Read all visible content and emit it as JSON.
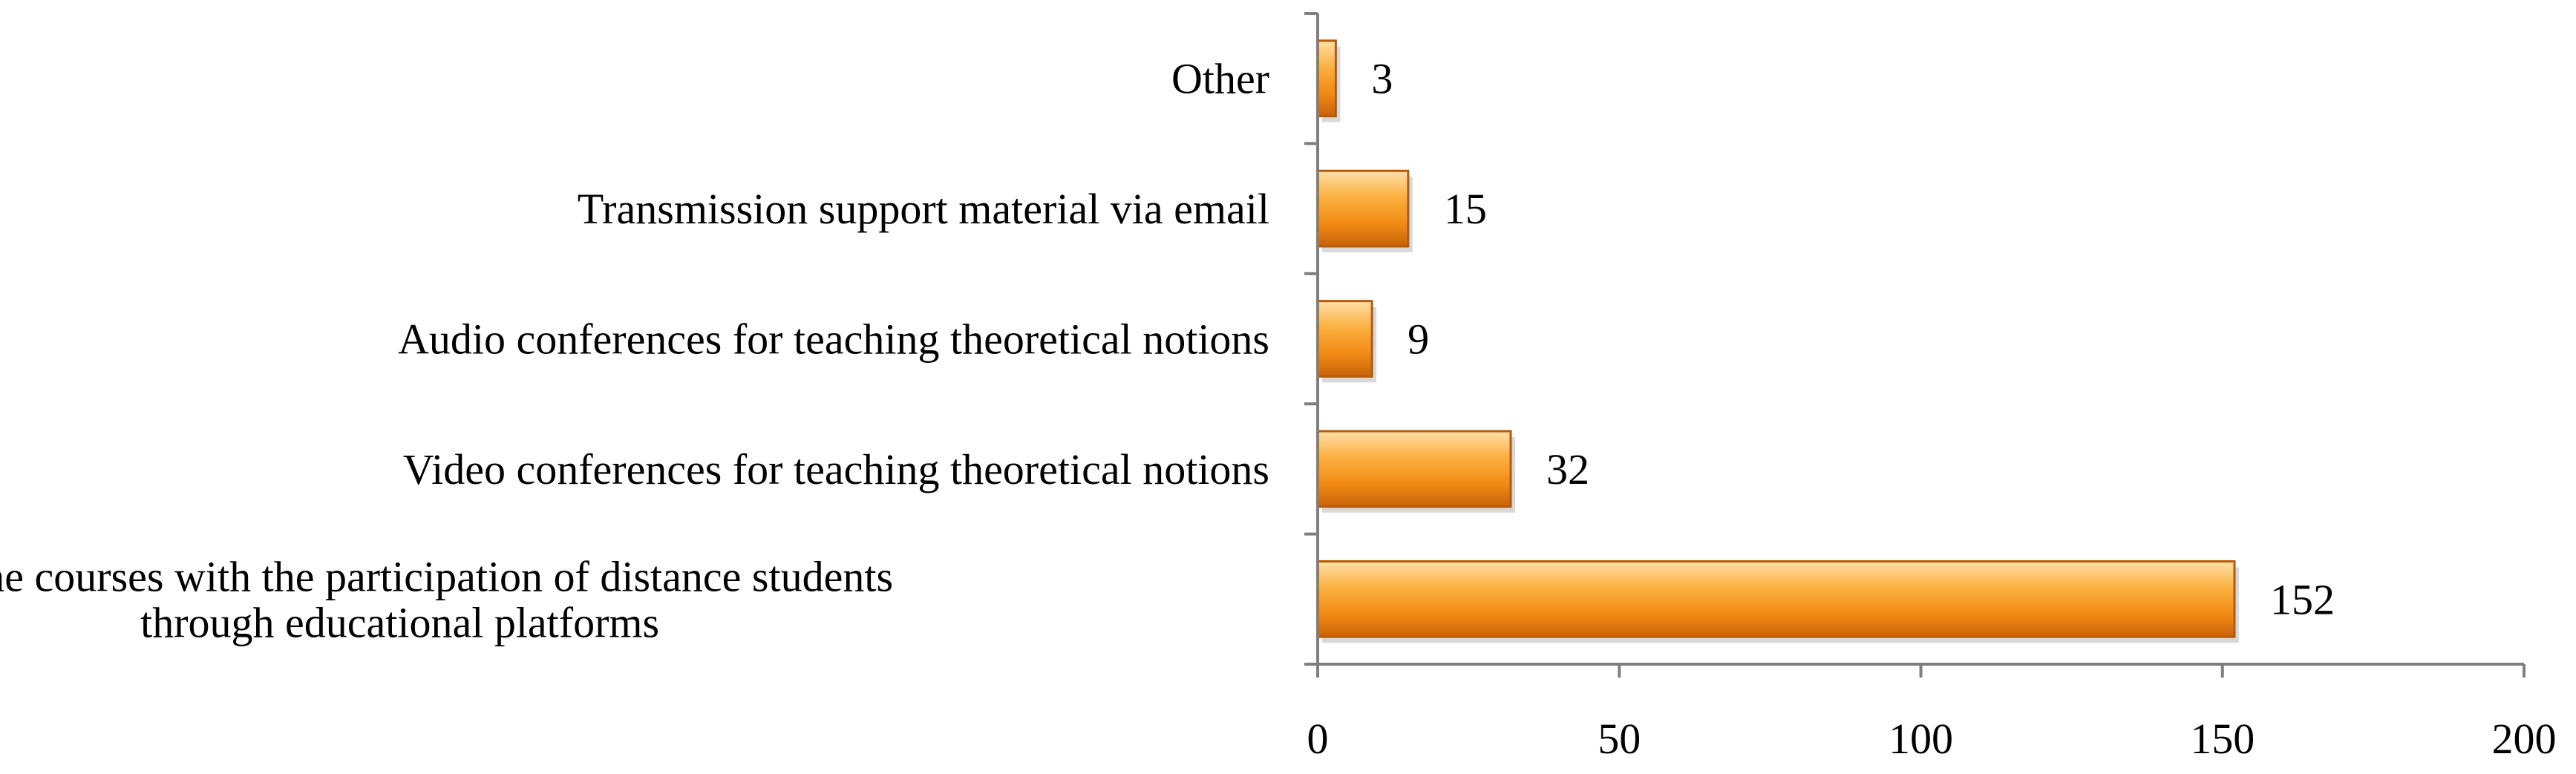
{
  "chart_data": {
    "type": "bar",
    "orientation": "horizontal",
    "categories": [
      [
        "Online courses with the participation of distance students",
        "through educational platforms"
      ],
      [
        "Video conferences for teaching theoretical notions"
      ],
      [
        "Audio conferences for teaching theoretical notions"
      ],
      [
        "Transmission support material via email"
      ],
      [
        "Other"
      ]
    ],
    "values": [
      152,
      32,
      9,
      15,
      3
    ],
    "data_labels": [
      "152",
      "32",
      "9",
      "15",
      "3"
    ],
    "xlim": [
      0,
      200
    ],
    "xticks": [
      0,
      50,
      100,
      150,
      200
    ],
    "xtick_labels": [
      "0",
      "50",
      "100",
      "150",
      "200"
    ],
    "grid": false,
    "legend": "none",
    "colors": {
      "bar_light": "#ffd08a",
      "bar_mid": "#f7941d",
      "bar_dark": "#c8620a",
      "axis": "#7f7f7f"
    }
  }
}
